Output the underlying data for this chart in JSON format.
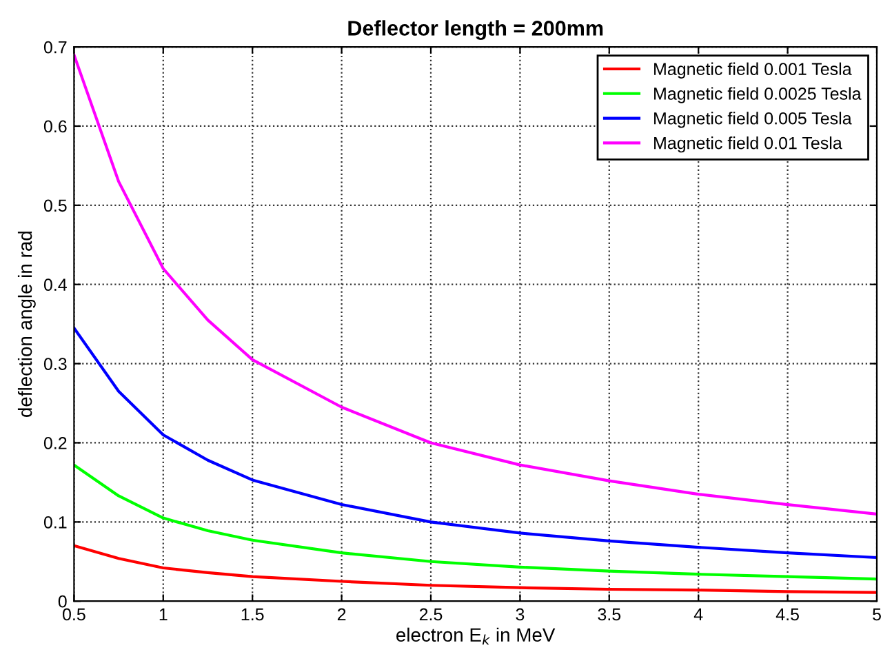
{
  "chart_data": {
    "type": "line",
    "title": "Deflector length = 200mm",
    "xlabel": "electron E$_{k}$ in MeV",
    "ylabel": "deflection angle in rad",
    "x": [
      0.5,
      0.75,
      1,
      1.25,
      1.5,
      2,
      2.5,
      3,
      3.5,
      4,
      4.5,
      5
    ],
    "series": [
      {
        "name": "Magnetic field 0.001 Tesla",
        "color": "#ff0000",
        "values": [
          0.07,
          0.054,
          0.042,
          0.036,
          0.031,
          0.025,
          0.02,
          0.017,
          0.015,
          0.014,
          0.012,
          0.011
        ]
      },
      {
        "name": "Magnetic field 0.0025 Tesla",
        "color": "#00ff00",
        "values": [
          0.172,
          0.133,
          0.105,
          0.089,
          0.077,
          0.061,
          0.05,
          0.043,
          0.038,
          0.034,
          0.031,
          0.028
        ]
      },
      {
        "name": "Magnetic field 0.005 Tesla",
        "color": "#0000ff",
        "values": [
          0.345,
          0.265,
          0.21,
          0.178,
          0.153,
          0.122,
          0.1,
          0.086,
          0.076,
          0.068,
          0.061,
          0.055
        ]
      },
      {
        "name": "Magnetic field 0.01 Tesla",
        "color": "#ff00ff",
        "values": [
          0.69,
          0.53,
          0.42,
          0.355,
          0.305,
          0.245,
          0.2,
          0.172,
          0.152,
          0.135,
          0.122,
          0.11
        ]
      }
    ],
    "xlim": [
      0.5,
      5
    ],
    "xticks": [
      0.5,
      1,
      1.5,
      2,
      2.5,
      3,
      3.5,
      4,
      4.5,
      5
    ],
    "ylim": [
      0,
      0.7
    ],
    "yticks": [
      0,
      0.1,
      0.2,
      0.3,
      0.4,
      0.5,
      0.6,
      0.7
    ],
    "grid": true,
    "legend": "top right",
    "line_style": "solid"
  }
}
